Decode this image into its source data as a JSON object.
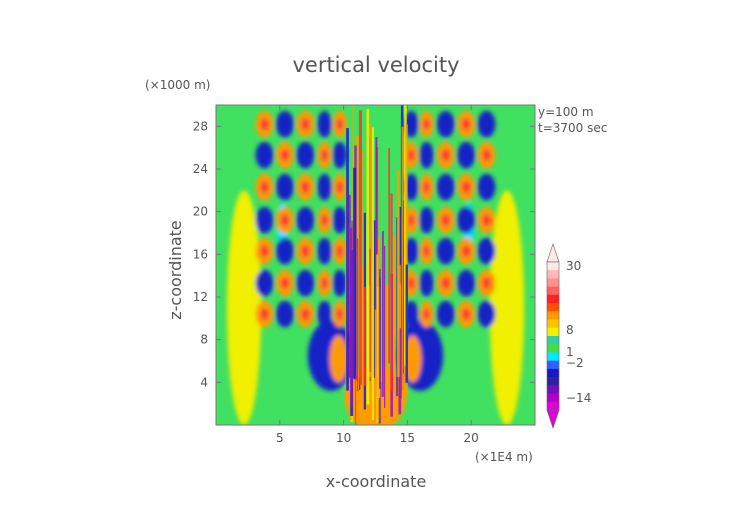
{
  "chart_data": {
    "type": "heatmap",
    "title": "vertical velocity",
    "xlabel": "x-coordinate",
    "ylabel": "z-coordinate",
    "x_unit": "(×1E4 m)",
    "y_unit": "(×1000 m)",
    "annotations": [
      "y=100 m",
      "t=3700 sec"
    ],
    "xlim": [
      0,
      25
    ],
    "ylim": [
      0,
      30
    ],
    "x_ticks": [
      5,
      10,
      15,
      20
    ],
    "y_ticks": [
      4,
      8,
      12,
      16,
      20,
      24,
      28
    ],
    "colorbar": {
      "tick_labels": [
        "30",
        "8",
        "1",
        "−2",
        "−14"
      ],
      "tick_values": [
        30,
        8,
        1,
        -2,
        -14
      ],
      "colors": [
        "#ffe8e8",
        "#ffb8b8",
        "#ff9090",
        "#ff6060",
        "#ff2020",
        "#ff5000",
        "#ff9a00",
        "#ffc400",
        "#f0f000",
        "#30d0a0",
        "#40e040",
        "#00e8ff",
        "#3060ff",
        "#1818c8",
        "#3020a0",
        "#7010c0",
        "#b000c8",
        "#e000d8"
      ]
    },
    "palette": {
      "background": "#40e060",
      "strong_up": "#ff9a00",
      "weak_up": "#f0f000",
      "weak_down": "#00e0ff",
      "strong_down": "#1820c8",
      "extreme_up": "#ff3030",
      "extreme_down": "#a010c0"
    },
    "features": [
      {
        "kind": "updraft_band",
        "x": 2.2,
        "z_range": [
          0.5,
          22
        ],
        "sign": "up",
        "level": "weak"
      },
      {
        "kind": "updraft_band",
        "x": 22.8,
        "z_range": [
          0.5,
          22
        ],
        "sign": "up",
        "level": "weak"
      },
      {
        "kind": "convective_core",
        "x_range": [
          10,
          15
        ],
        "z_range": [
          0,
          16
        ],
        "sign": "mixed",
        "level": "strong"
      },
      {
        "kind": "downdraft",
        "x": 9.0,
        "z": 6.5,
        "sign": "down",
        "level": "strong"
      },
      {
        "kind": "downdraft",
        "x": 16.0,
        "z": 6.5,
        "sign": "down",
        "level": "strong"
      },
      {
        "kind": "gravity_waves",
        "x_range": [
          3,
          22
        ],
        "z_range": [
          16,
          30
        ],
        "sign": "mixed",
        "level": "strong"
      }
    ]
  }
}
